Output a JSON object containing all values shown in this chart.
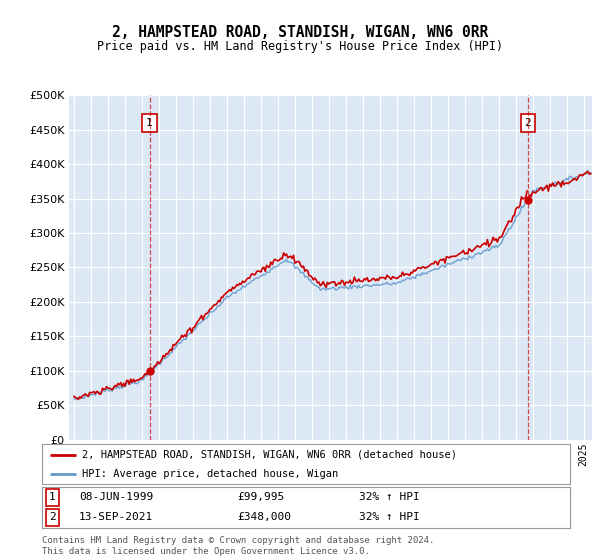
{
  "title": "2, HAMPSTEAD ROAD, STANDISH, WIGAN, WN6 0RR",
  "subtitle": "Price paid vs. HM Land Registry's House Price Index (HPI)",
  "plot_bg_color": "#dce9f5",
  "ylim": [
    0,
    500000
  ],
  "yticks": [
    0,
    50000,
    100000,
    150000,
    200000,
    250000,
    300000,
    350000,
    400000,
    450000,
    500000
  ],
  "sale1": {
    "date_num": 1999.44,
    "price": 99995,
    "label": "1"
  },
  "sale2": {
    "date_num": 2021.71,
    "price": 348000,
    "label": "2"
  },
  "legend_property": "2, HAMPSTEAD ROAD, STANDISH, WIGAN, WN6 0RR (detached house)",
  "legend_hpi": "HPI: Average price, detached house, Wigan",
  "copyright": "Contains HM Land Registry data © Crown copyright and database right 2024.\nThis data is licensed under the Open Government Licence v3.0.",
  "line_color_property": "#cc0000",
  "line_color_hpi": "#6699cc",
  "marker_color": "#cc0000",
  "dashed_vline_color": "#cc0000",
  "xlim_left": 1994.7,
  "xlim_right": 2025.5
}
